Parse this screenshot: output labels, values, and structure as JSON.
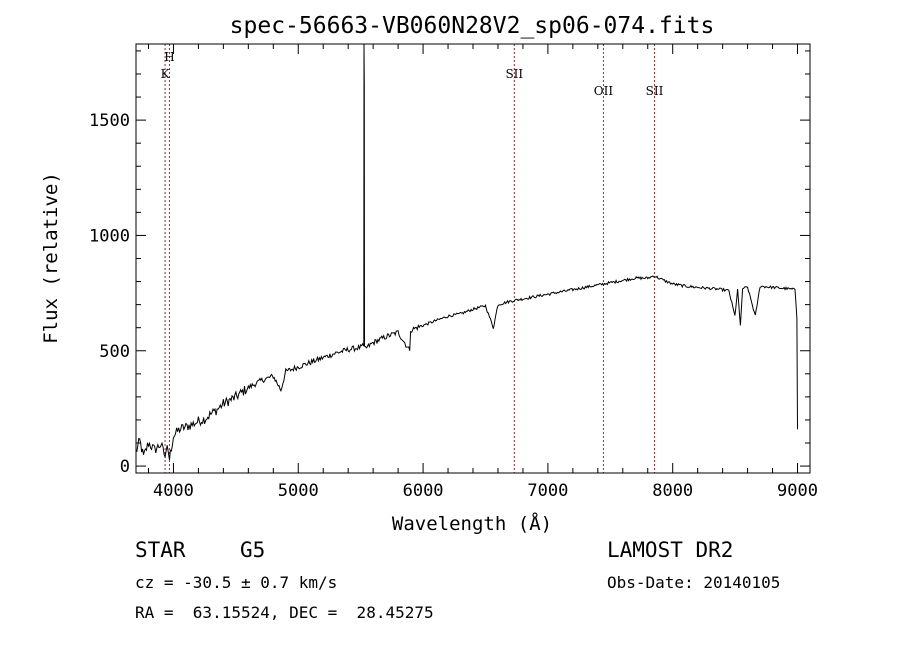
{
  "chart_data": {
    "type": "line",
    "title": "spec-56663-VB060N28V2_sp06-074.fits",
    "xlabel": "Wavelength (Å)",
    "ylabel": "Flux (relative)",
    "xlim": [
      3700,
      9100
    ],
    "ylim": [
      -30,
      1830
    ],
    "xticks": [
      4000,
      5000,
      6000,
      7000,
      8000,
      9000
    ],
    "yticks": [
      0,
      500,
      1000,
      1500
    ],
    "grid": false,
    "series": [
      {
        "x": [
          3700,
          3730,
          3760,
          3800,
          3850,
          3900,
          3933,
          3950,
          3968,
          4000,
          4050,
          4100,
          4150,
          4200,
          4250,
          4300,
          4350,
          4400,
          4500,
          4600,
          4700,
          4800,
          4861,
          4900,
          5000,
          5100,
          5200,
          5300,
          5400,
          5450,
          5500,
          5525,
          5527,
          5529,
          5531,
          5540,
          5600,
          5700,
          5800,
          5893,
          5900,
          6000,
          6100,
          6200,
          6300,
          6400,
          6500,
          6563,
          6600,
          6700,
          6800,
          6900,
          7000,
          7100,
          7200,
          7300,
          7400,
          7500,
          7600,
          7700,
          7800,
          7850,
          7900,
          7950,
          8000,
          8100,
          8200,
          8300,
          8400,
          8450,
          8498,
          8520,
          8542,
          8560,
          8600,
          8662,
          8700,
          8800,
          8900,
          8980,
          8995,
          9000
        ],
        "y": [
          60,
          110,
          40,
          100,
          70,
          95,
          40,
          90,
          30,
          130,
          160,
          170,
          180,
          195,
          205,
          225,
          245,
          270,
          300,
          340,
          370,
          390,
          330,
          410,
          430,
          450,
          470,
          490,
          505,
          510,
          515,
          520,
          1830,
          1650,
          520,
          510,
          535,
          560,
          580,
          500,
          590,
          610,
          630,
          650,
          660,
          680,
          695,
          600,
          700,
          715,
          725,
          735,
          745,
          755,
          765,
          775,
          785,
          795,
          805,
          815,
          815,
          825,
          812,
          800,
          790,
          780,
          775,
          770,
          765,
          760,
          650,
          765,
          610,
          770,
          775,
          650,
          780,
          775,
          770,
          765,
          640,
          160
        ]
      }
    ],
    "line_markers": [
      {
        "label": "H",
        "x": 3968
      },
      {
        "label": "K",
        "x": 3933
      },
      {
        "label": "SII",
        "x": 6731
      },
      {
        "label": "OII",
        "x": 7445
      },
      {
        "label": "SII",
        "x": 7854
      }
    ]
  },
  "info": {
    "object_class": "STAR",
    "subclass": "G5",
    "redshift_line": "cz = -30.5 ± 0.7 km/s",
    "coords_line": "RA =  63.15524, DEC =  28.45275",
    "survey": "LAMOST DR2",
    "obs_date": "Obs-Date: 20140105"
  },
  "colors": {
    "axes": "#000000",
    "spectrum": "#000000",
    "line_markers": "#b22222"
  }
}
